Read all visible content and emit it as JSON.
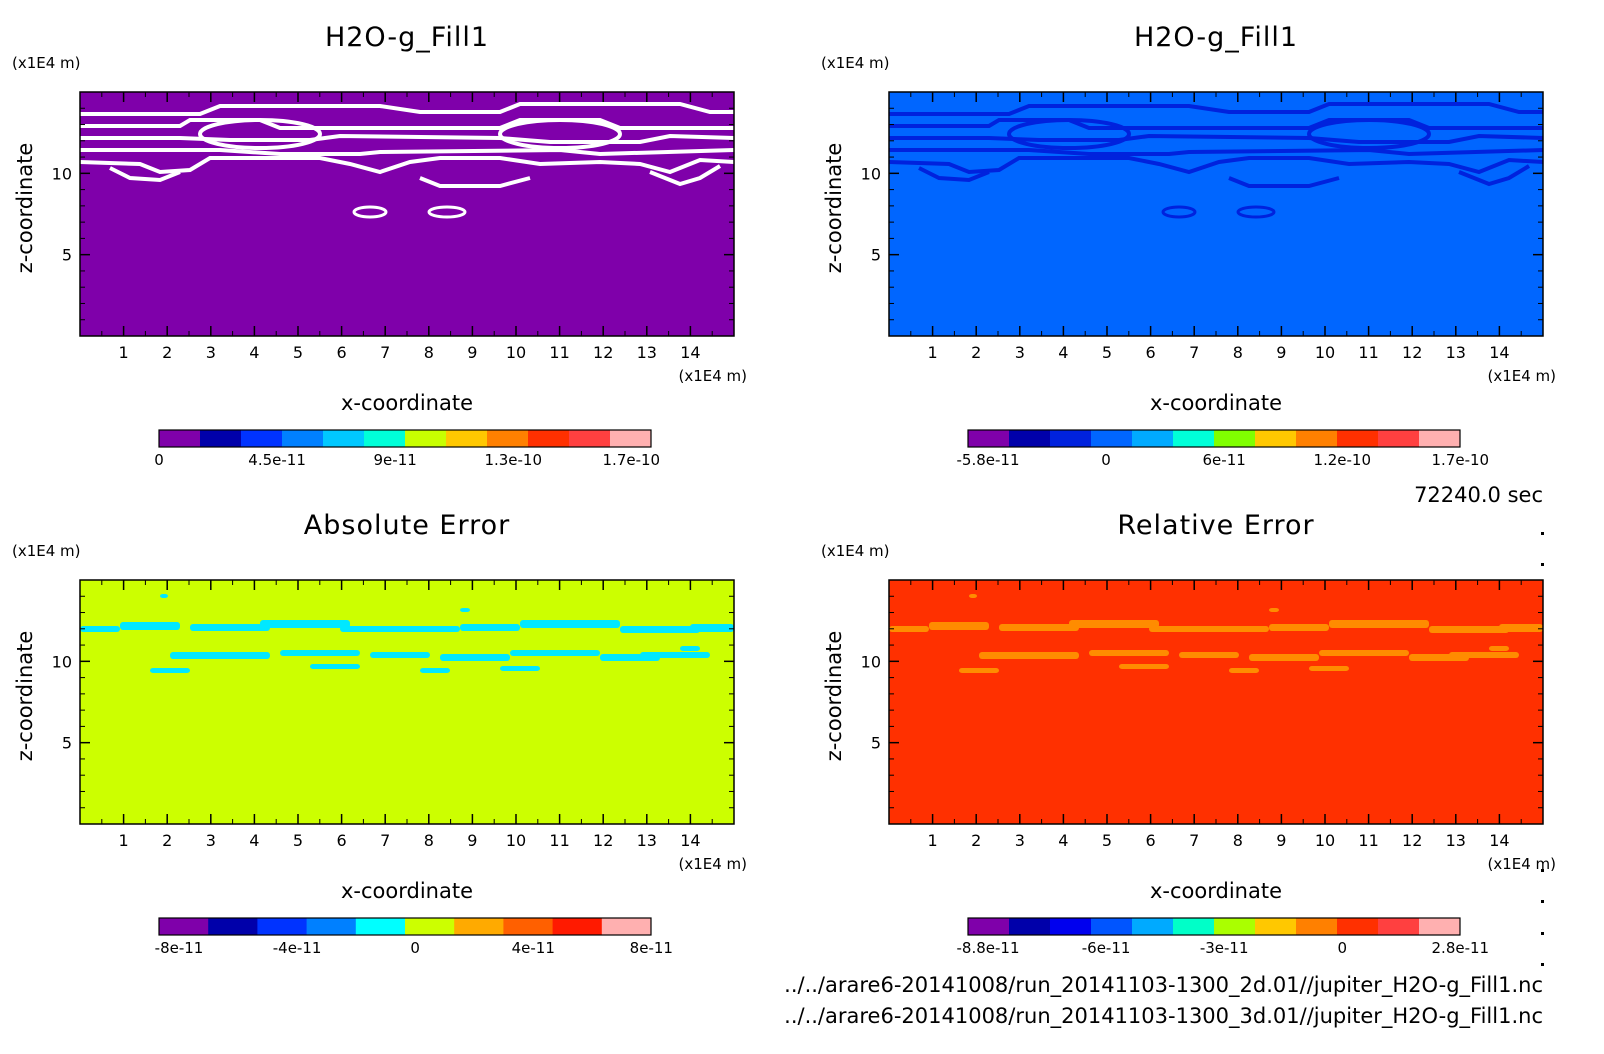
{
  "time_label": "72240.0 sec",
  "files": [
    "../../arare6-20141008/run_20141103-1300_2d.01//jupiter_H2O-g_Fill1.nc",
    "../../arare6-20141008/run_20141103-1300_3d.01//jupiter_H2O-g_Fill1.nc"
  ],
  "chart_data": [
    {
      "type": "heatmap",
      "title": "H2O-g_Fill1",
      "xlabel": "x-coordinate",
      "ylabel": "z-coordinate",
      "x_unit": "(x1E4 m)",
      "z_unit": "(x1E4 m)",
      "xlim": [
        0,
        15
      ],
      "zlim": [
        0,
        15
      ],
      "x_ticks": [
        "1",
        "2",
        "3",
        "4",
        "5",
        "6",
        "7",
        "8",
        "9",
        "10",
        "11",
        "12",
        "13",
        "14"
      ],
      "z_ticks": [
        "5",
        "10"
      ],
      "background_color": "#7f00aa",
      "feature_color": "#ffffff",
      "colorbar": {
        "colors": [
          "#7f00aa",
          "#0000aa",
          "#0033ff",
          "#0080ff",
          "#00c8ff",
          "#00ffd8",
          "#c8ff00",
          "#ffc800",
          "#ff8000",
          "#ff3000",
          "#ff4040",
          "#ffb0b0"
        ],
        "labels": [
          "0",
          "4.5e-11",
          "9e-11",
          "1.3e-10",
          "1.7e-10"
        ]
      }
    },
    {
      "type": "heatmap",
      "title": "H2O-g_Fill1",
      "xlabel": "x-coordinate",
      "ylabel": "z-coordinate",
      "x_unit": "(x1E4 m)",
      "z_unit": "(x1E4 m)",
      "xlim": [
        0,
        15
      ],
      "zlim": [
        0,
        15
      ],
      "x_ticks": [
        "1",
        "2",
        "3",
        "4",
        "5",
        "6",
        "7",
        "8",
        "9",
        "10",
        "11",
        "12",
        "13",
        "14"
      ],
      "z_ticks": [
        "5",
        "10"
      ],
      "background_color": "#0066ff",
      "feature_color": "#0022dd",
      "colorbar": {
        "colors": [
          "#7f00aa",
          "#0000aa",
          "#0022dd",
          "#0066ff",
          "#00aaff",
          "#00ffd8",
          "#80ff00",
          "#ffc800",
          "#ff8000",
          "#ff3000",
          "#ff4040",
          "#ffb0b0"
        ],
        "labels": [
          "-5.8e-11",
          "0",
          "6e-11",
          "1.2e-10",
          "1.7e-10"
        ]
      }
    },
    {
      "type": "heatmap",
      "title": "Absolute Error",
      "xlabel": "x-coordinate",
      "ylabel": "z-coordinate",
      "x_unit": "(x1E4 m)",
      "z_unit": "(x1E4 m)",
      "xlim": [
        0,
        15
      ],
      "zlim": [
        0,
        15
      ],
      "x_ticks": [
        "1",
        "2",
        "3",
        "4",
        "5",
        "6",
        "7",
        "8",
        "9",
        "10",
        "11",
        "12",
        "13",
        "14"
      ],
      "z_ticks": [
        "5",
        "10"
      ],
      "background_color": "#ccff00",
      "feature_color": "#00e8ff",
      "colorbar": {
        "colors": [
          "#7f00aa",
          "#0000aa",
          "#0033ff",
          "#0080ff",
          "#00ffff",
          "#ccff00",
          "#ffaa00",
          "#ff6000",
          "#ff1a00",
          "#ffb0b0"
        ],
        "labels": [
          "-8e-11",
          "-4e-11",
          "0",
          "4e-11",
          "8e-11"
        ]
      }
    },
    {
      "type": "heatmap",
      "title": "Relative Error",
      "xlabel": "x-coordinate",
      "ylabel": "z-coordinate",
      "x_unit": "(x1E4 m)",
      "z_unit": "(x1E4 m)",
      "xlim": [
        0,
        15
      ],
      "zlim": [
        0,
        15
      ],
      "x_ticks": [
        "1",
        "2",
        "3",
        "4",
        "5",
        "6",
        "7",
        "8",
        "9",
        "10",
        "11",
        "12",
        "13",
        "14"
      ],
      "z_ticks": [
        "5",
        "10"
      ],
      "background_color": "#ff3000",
      "feature_color": "#ff8c00",
      "colorbar": {
        "colors": [
          "#7f00aa",
          "#0000aa",
          "#0000ee",
          "#0055ff",
          "#00aaff",
          "#00ffc8",
          "#aaff00",
          "#ffc800",
          "#ff8000",
          "#ff3000",
          "#ff4040",
          "#ffb0b0"
        ],
        "labels": [
          "-8.8e-11",
          "-6e-11",
          "-3e-11",
          "0",
          "2.8e-11"
        ]
      }
    }
  ]
}
